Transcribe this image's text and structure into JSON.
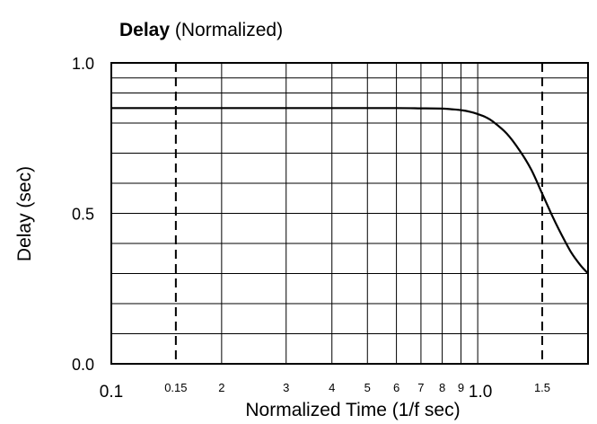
{
  "chart_data": {
    "type": "line",
    "title_bold": "Delay",
    "title_rest": "(Normalized)",
    "xlabel": "Normalized Time (1/f sec)",
    "ylabel": "Delay (sec)",
    "xscale": "log",
    "xlim": [
      0.1,
      2.0
    ],
    "ylim": [
      0.0,
      1.0
    ],
    "grid": true,
    "x_tick_labels": [
      {
        "value": 0.1,
        "label": "0.1"
      },
      {
        "value": 0.15,
        "label": "0.15"
      },
      {
        "value": 0.2,
        "label": "2"
      },
      {
        "value": 0.3,
        "label": "3"
      },
      {
        "value": 0.4,
        "label": "4"
      },
      {
        "value": 0.5,
        "label": "5"
      },
      {
        "value": 0.6,
        "label": "6"
      },
      {
        "value": 0.7,
        "label": "7"
      },
      {
        "value": 0.8,
        "label": "8"
      },
      {
        "value": 0.9,
        "label": "9"
      },
      {
        "value": 1.0,
        "label": "1.0"
      },
      {
        "value": 1.5,
        "label": "1.5"
      }
    ],
    "x_gridlines": [
      0.2,
      0.3,
      0.4,
      0.5,
      0.6,
      0.7,
      0.8,
      0.9,
      1.0
    ],
    "x_dashed_lines": [
      0.15,
      1.5
    ],
    "y_tick_labels": [
      {
        "value": 0.0,
        "label": "0.0"
      },
      {
        "value": 0.5,
        "label": "0.5"
      },
      {
        "value": 1.0,
        "label": "1.0"
      }
    ],
    "y_gridlines": [
      0.1,
      0.2,
      0.3,
      0.4,
      0.5,
      0.6,
      0.7,
      0.8,
      0.9,
      0.95
    ],
    "series": [
      {
        "x": [
          0.1,
          0.2,
          0.4,
          0.6,
          0.7,
          0.8,
          0.85,
          0.9,
          0.95,
          1.0,
          1.05,
          1.1,
          1.2,
          1.3,
          1.4,
          1.5,
          1.6,
          1.7,
          1.8,
          1.9,
          2.0
        ],
        "values": [
          0.85,
          0.85,
          0.85,
          0.85,
          0.849,
          0.848,
          0.846,
          0.843,
          0.838,
          0.83,
          0.82,
          0.805,
          0.765,
          0.71,
          0.645,
          0.565,
          0.49,
          0.425,
          0.37,
          0.33,
          0.3
        ]
      }
    ]
  }
}
